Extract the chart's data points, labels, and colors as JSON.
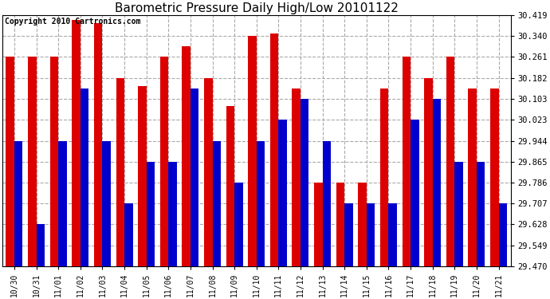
{
  "title": "Barometric Pressure Daily High/Low 20101122",
  "copyright": "Copyright 2010 Cartronics.com",
  "labels": [
    "10/30",
    "10/31",
    "11/01",
    "11/02",
    "11/03",
    "11/04",
    "11/05",
    "11/06",
    "11/07",
    "11/08",
    "11/09",
    "11/10",
    "11/11",
    "11/12",
    "11/13",
    "11/14",
    "11/15",
    "11/16",
    "11/17",
    "11/18",
    "11/19",
    "11/20",
    "11/21"
  ],
  "highs": [
    30.261,
    30.261,
    30.261,
    30.4,
    30.39,
    30.182,
    30.15,
    30.261,
    30.3,
    30.182,
    30.075,
    30.34,
    30.35,
    30.143,
    29.786,
    29.786,
    29.786,
    30.143,
    30.261,
    30.182,
    30.261,
    30.143,
    30.143
  ],
  "lows": [
    29.944,
    29.628,
    29.944,
    30.143,
    29.944,
    29.707,
    29.865,
    29.865,
    30.143,
    29.944,
    29.786,
    29.944,
    30.023,
    30.103,
    29.944,
    29.707,
    29.707,
    29.707,
    30.023,
    30.103,
    29.865,
    29.865,
    29.707
  ],
  "ymin": 29.47,
  "ymax": 30.419,
  "yticks": [
    29.47,
    29.549,
    29.628,
    29.707,
    29.786,
    29.865,
    29.944,
    30.023,
    30.103,
    30.182,
    30.261,
    30.34,
    30.419
  ],
  "high_color": "#dd0000",
  "low_color": "#0000cc",
  "bg_color": "#ffffff",
  "grid_color": "#aaaaaa",
  "title_fontsize": 11,
  "copyright_fontsize": 7,
  "bar_width": 0.38
}
